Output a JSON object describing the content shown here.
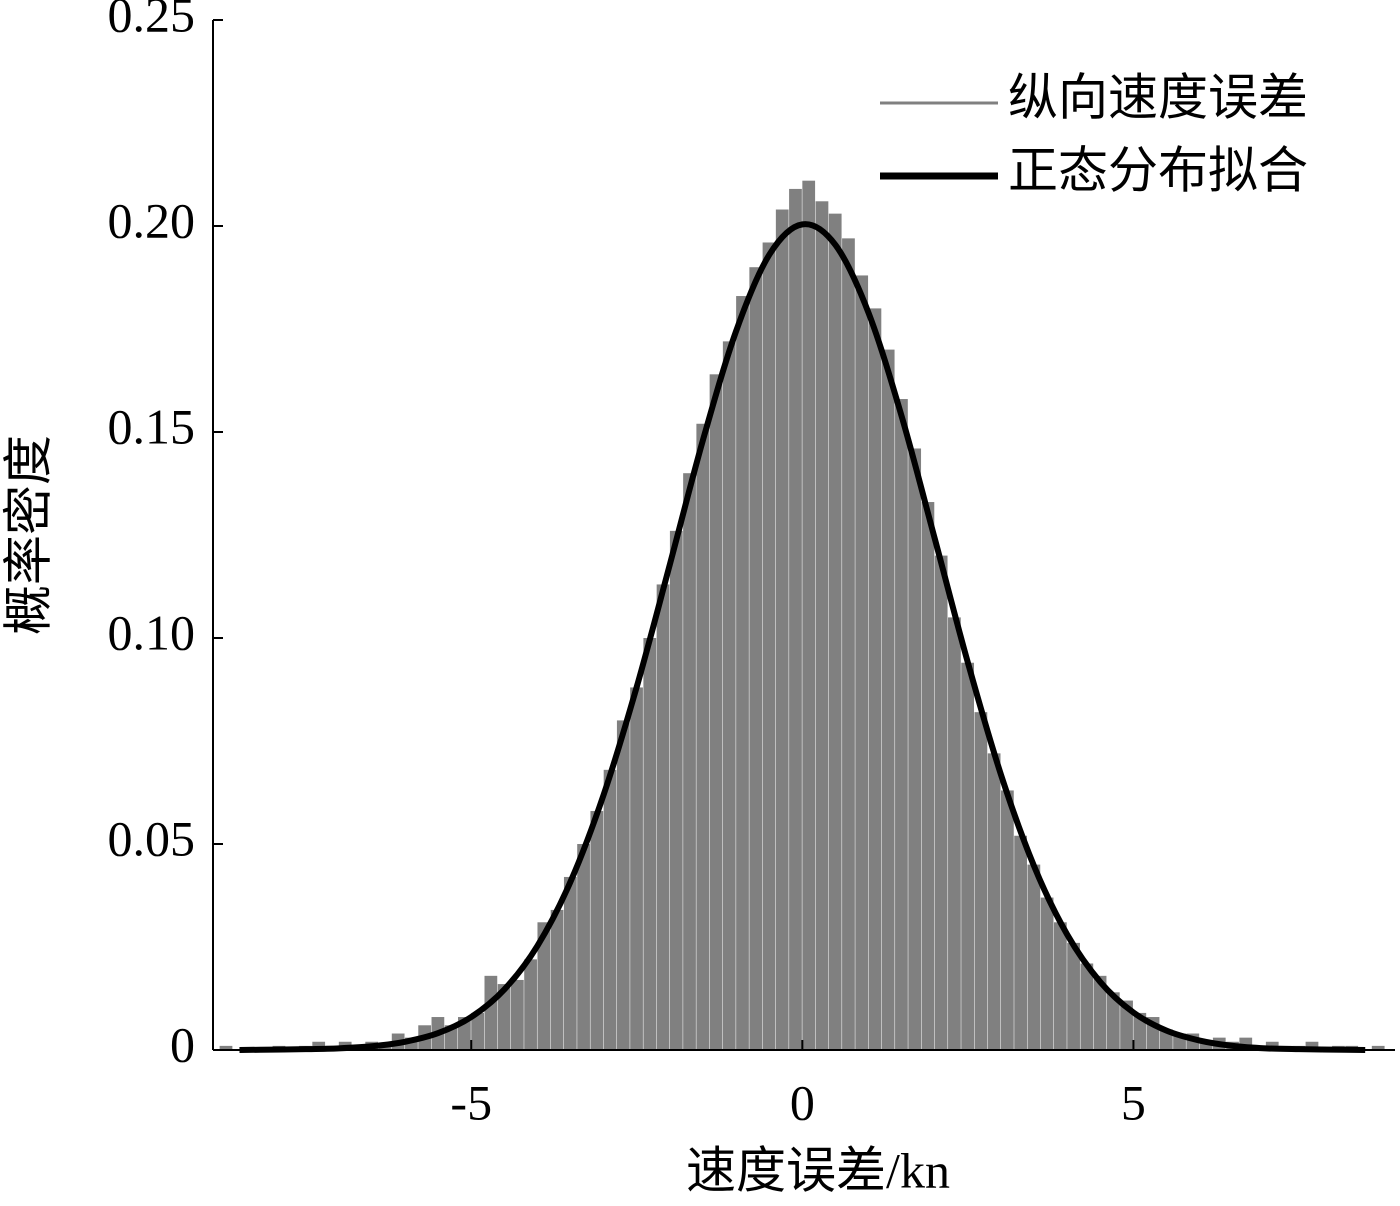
{
  "chart_data": {
    "type": "histogram",
    "xlabel": "速度误差/kn",
    "ylabel": "概率密度",
    "xlim": [
      -8.9,
      8.95
    ],
    "ylim": [
      0,
      0.25
    ],
    "xticks": [
      -5,
      0,
      5
    ],
    "yticks": [
      0,
      0.05,
      {
        "value": 0.1,
        "label": "0.10"
      },
      0.15,
      {
        "value": 0.2,
        "label": "0.20"
      },
      0.25
    ],
    "legend": "upper right",
    "bins": [
      -8.8,
      -8.6,
      -8.4,
      -8.2,
      -8,
      -7.8,
      -7.6,
      -7.4,
      -7.2,
      -7,
      -6.8,
      -6.6,
      -6.4,
      -6.2,
      -6,
      -5.8,
      -5.6,
      -5.4,
      -5.2,
      -5,
      -4.8,
      -4.6,
      -4.4,
      -4.2,
      -4,
      -3.8,
      -3.6,
      -3.4,
      -3.2,
      -3,
      -2.8,
      -2.6,
      -2.4,
      -2.2,
      -2,
      -1.8,
      -1.6,
      -1.4,
      -1.2,
      -1,
      -0.8,
      -0.6,
      -0.4,
      -0.2,
      0,
      0.2,
      0.4,
      0.6,
      0.8,
      1,
      1.2,
      1.4,
      1.6,
      1.8,
      2,
      2.2,
      2.4,
      2.6,
      2.8,
      3,
      3.2,
      3.4,
      3.6,
      3.8,
      4,
      4.2,
      4.4,
      4.6,
      4.8,
      5,
      5.2,
      5.4,
      5.6,
      5.8,
      6,
      6.2,
      6.4,
      6.6,
      6.8,
      7,
      7.2,
      7.4,
      7.6,
      7.8,
      8,
      8.2,
      8.4,
      8.6,
      8.8
    ],
    "series": [
      {
        "name": "纵向速度误差",
        "color": "#808080",
        "values": [
          0.001,
          0,
          0,
          0,
          0.001,
          0,
          0.001,
          0.002,
          0.001,
          0.002,
          0.001,
          0.002,
          0.001,
          0.004,
          0.003,
          0.006,
          0.008,
          0.006,
          0.008,
          0.009,
          0.018,
          0.016,
          0.017,
          0.022,
          0.031,
          0.034,
          0.042,
          0.05,
          0.058,
          0.068,
          0.08,
          0.088,
          0.1,
          0.113,
          0.126,
          0.14,
          0.152,
          0.164,
          0.172,
          0.183,
          0.19,
          0.196,
          0.204,
          0.209,
          0.211,
          0.206,
          0.203,
          0.197,
          0.188,
          0.18,
          0.17,
          0.158,
          0.146,
          0.133,
          0.12,
          0.105,
          0.094,
          0.082,
          0.072,
          0.063,
          0.052,
          0.045,
          0.037,
          0.031,
          0.026,
          0.021,
          0.018,
          0.014,
          0.012,
          0.009,
          0.008,
          0.005,
          0.004,
          0.004,
          0.002,
          0.003,
          0.002,
          0.003,
          0.001,
          0.002,
          0.001,
          0.001,
          0.002,
          0,
          0.001,
          0.001,
          0,
          0.001
        ]
      }
    ],
    "fit": {
      "type": "line",
      "name": "正态分布拟合",
      "color": "#000000",
      "x": [
        -8.5,
        -8,
        -7.5,
        -7,
        -6.5,
        -6,
        -5.5,
        -5,
        -4.5,
        -4,
        -3.5,
        -3,
        -2.5,
        -2,
        -1.5,
        -1,
        -0.5,
        0,
        0.5,
        1,
        1.5,
        2,
        2.5,
        3,
        3.5,
        4,
        4.5,
        5,
        5.5,
        6,
        6.5,
        7,
        7.5,
        8,
        8.5
      ],
      "values": [
        0,
        0.0001,
        0.0002,
        0.0004,
        0.0009,
        0.002,
        0.0041,
        0.008,
        0.0147,
        0.0253,
        0.0409,
        0.062,
        0.0882,
        0.1179,
        0.1481,
        0.1745,
        0.193,
        0.2004,
        0.1954,
        0.1789,
        0.1538,
        0.1241,
        0.094,
        0.0668,
        0.0446,
        0.028,
        0.0165,
        0.0091,
        0.0047,
        0.0023,
        0.001,
        0.0004,
        0.0002,
        0.0001,
        0
      ]
    }
  }
}
